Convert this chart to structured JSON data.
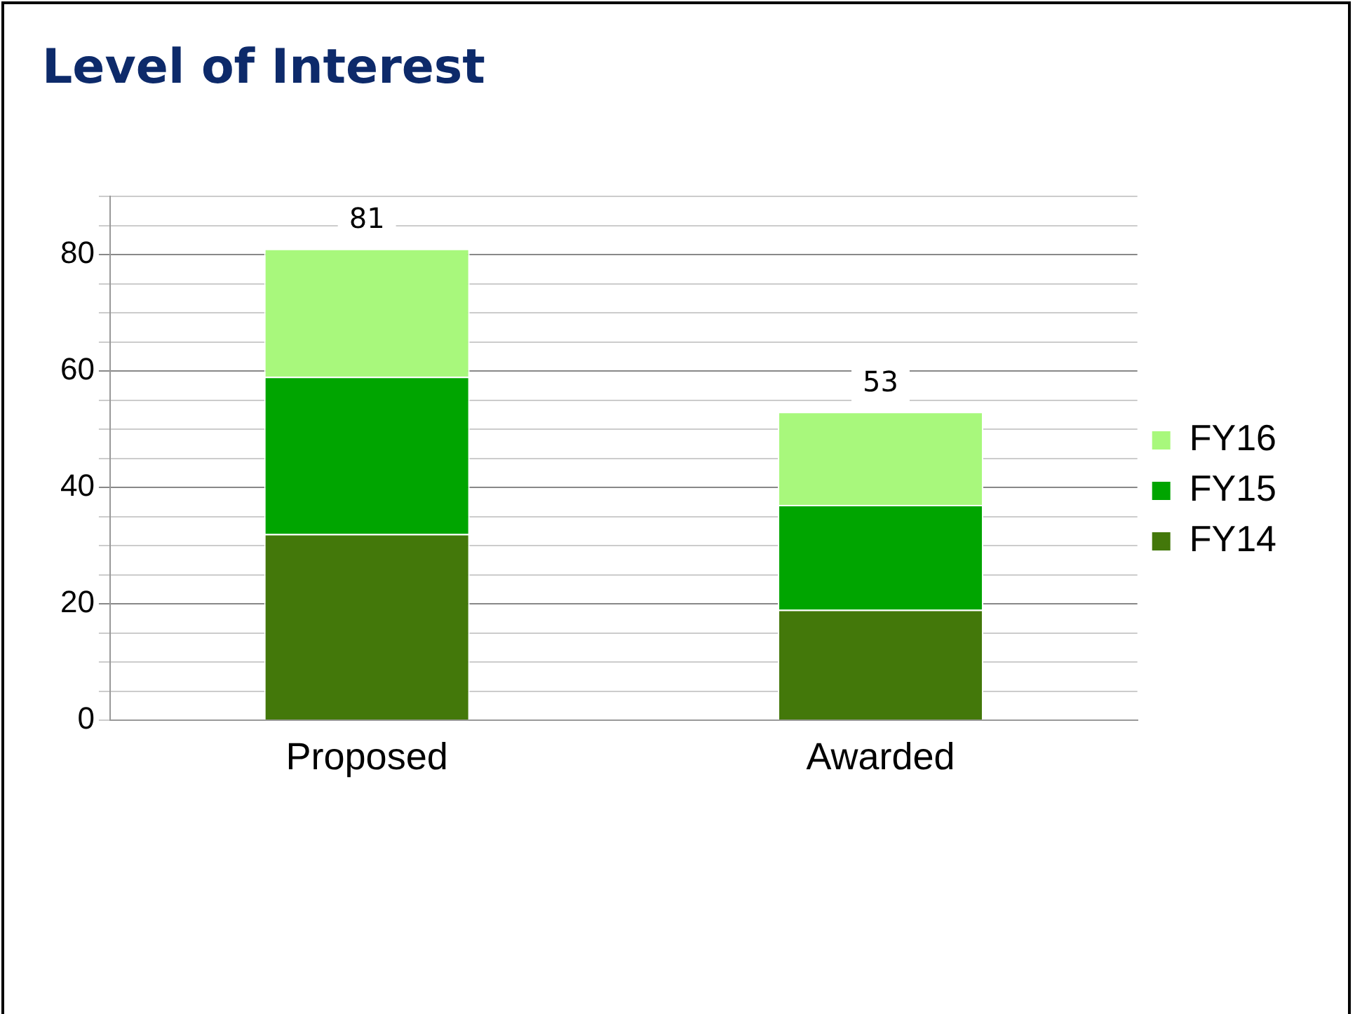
{
  "chart_data": {
    "type": "bar",
    "title": "Level of Interest",
    "categories": [
      "Proposed",
      "Awarded"
    ],
    "stacked": true,
    "series": [
      {
        "name": "FY14",
        "color": "#43780a",
        "values": [
          32,
          19
        ]
      },
      {
        "name": "FY15",
        "color": "#00a500",
        "values": [
          27,
          18
        ]
      },
      {
        "name": "FY16",
        "color": "#a8f87c",
        "values": [
          22,
          16
        ]
      }
    ],
    "ylim": [
      0,
      90
    ],
    "yticks": [
      0,
      {
        "value": 5,
        "label": null
      },
      {
        "value": 10,
        "label": null
      },
      {
        "value": 15,
        "label": null
      },
      20,
      {
        "value": 25,
        "label": null
      },
      {
        "value": 30,
        "label": null
      },
      {
        "value": 35,
        "label": null
      },
      40,
      {
        "value": 45,
        "label": null
      },
      {
        "value": 50,
        "label": null
      },
      {
        "value": 55,
        "label": null
      },
      60,
      {
        "value": 65,
        "label": null
      },
      {
        "value": 70,
        "label": null
      },
      {
        "value": 75,
        "label": null
      },
      80,
      {
        "value": 85,
        "label": null
      },
      {
        "value": 90,
        "label": null
      }
    ],
    "grid": "y",
    "legend": "right",
    "totals": [
      "81",
      "53"
    ]
  }
}
